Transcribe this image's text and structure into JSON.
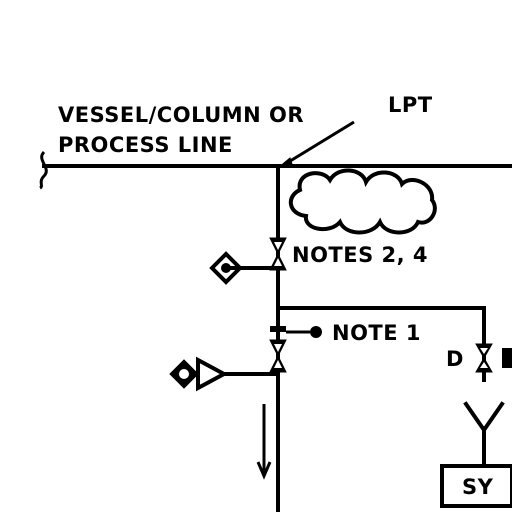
{
  "labels": {
    "process_line_1": "VESSEL/COLUMN OR",
    "process_line_2": "PROCESS LINE",
    "lpt": "LPT",
    "notes_2_4": "NOTES 2, 4",
    "note_1": "NOTE 1",
    "drain": "D",
    "sy": "SY"
  },
  "colors": {
    "ink": "#000000",
    "background": "#ffffff"
  }
}
